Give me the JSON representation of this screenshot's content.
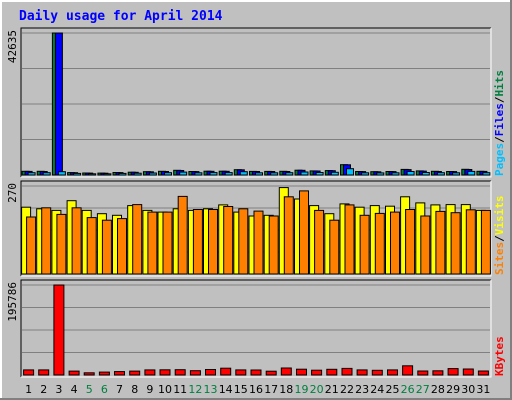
{
  "chart_data": {
    "type": "bar",
    "title": "Daily usage for April 2014",
    "days": [
      "1",
      "2",
      "3",
      "4",
      "5",
      "6",
      "7",
      "8",
      "9",
      "10",
      "11",
      "12",
      "13",
      "14",
      "15",
      "16",
      "17",
      "18",
      "19",
      "20",
      "21",
      "22",
      "23",
      "24",
      "25",
      "26",
      "27",
      "28",
      "29",
      "30",
      "31"
    ],
    "weekend_days": [
      "5",
      "6",
      "12",
      "13",
      "19",
      "20",
      "26",
      "27"
    ],
    "panels": [
      {
        "name": "hits-files-pages",
        "max_label": "42635",
        "ymax": 42635,
        "side_labels": [
          {
            "text": "Pages",
            "color": "#00c0ff"
          },
          {
            "text": "/",
            "color": "#000000"
          },
          {
            "text": "Files",
            "color": "#0000ff"
          },
          {
            "text": "/",
            "color": "#000000"
          },
          {
            "text": "Hits",
            "color": "#008040"
          }
        ],
        "series": [
          {
            "name": "Hits",
            "color": "#008040",
            "values": [
              1120,
              1100,
              42635,
              720,
              600,
              560,
              760,
              840,
              1000,
              1100,
              1400,
              1060,
              1150,
              1150,
              1600,
              1080,
              1090,
              1100,
              1450,
              1230,
              1320,
              3100,
              1050,
              1000,
              1050,
              1670,
              1220,
              1100,
              1060,
              1700,
              1120
            ]
          },
          {
            "name": "Files",
            "color": "#0000ff",
            "values": [
              1080,
              1060,
              42635,
              680,
              570,
              530,
              720,
              800,
              960,
              1060,
              1360,
              1020,
              1110,
              1110,
              1560,
              1040,
              1050,
              1060,
              1410,
              1190,
              1280,
              3050,
              1010,
              960,
              1010,
              1630,
              1180,
              1060,
              1020,
              1660,
              1080
            ]
          },
          {
            "name": "Pages",
            "color": "#00c0ff",
            "values": [
              700,
              690,
              1000,
              470,
              360,
              350,
              470,
              530,
              610,
              690,
              870,
              660,
              720,
              720,
              980,
              660,
              670,
              690,
              900,
              760,
              820,
              1900,
              650,
              620,
              650,
              1050,
              750,
              690,
              650,
              1080,
              690
            ]
          }
        ]
      },
      {
        "name": "visits-sites",
        "max_label": "270",
        "ymax": 270,
        "side_labels": [
          {
            "text": "Sites",
            "color": "#ff8000"
          },
          {
            "text": "/",
            "color": "#000000"
          },
          {
            "text": "Visits",
            "color": "#ffff00"
          }
        ],
        "series": [
          {
            "name": "Visits",
            "color": "#ffff00",
            "values": [
              205,
              200,
              195,
              225,
              195,
              185,
              180,
              210,
              195,
              190,
              200,
              195,
              200,
              212,
              190,
              178,
              180,
              265,
              230,
              210,
              185,
              215,
              205,
              210,
              208,
              237,
              218,
              212,
              213,
              213,
              195
            ]
          },
          {
            "name": "Sites",
            "color": "#ff8000",
            "values": [
              175,
              203,
              183,
              203,
              173,
              165,
              170,
              213,
              190,
              190,
              238,
              198,
              198,
              207,
              200,
              193,
              178,
              237,
              255,
              195,
              165,
              212,
              180,
              186,
              190,
              198,
              178,
              192,
              188,
              197,
              195
            ]
          }
        ]
      },
      {
        "name": "kbytes",
        "max_label": "195786",
        "ymax": 195786,
        "side_labels": [
          {
            "text": "KBytes",
            "color": "#ff0000"
          }
        ],
        "series": [
          {
            "name": "KBytes",
            "color": "#ff0000",
            "values": [
              11200,
              11000,
              195786,
              8500,
              4800,
              6200,
              7500,
              8400,
              11000,
              11400,
              11500,
              9300,
              11900,
              14700,
              11200,
              10800,
              8300,
              15300,
              12600,
              10500,
              12400,
              14300,
              11200,
              10200,
              11100,
              20000,
              8600,
              9200,
              14000,
              13000,
              8700
            ]
          }
        ]
      }
    ]
  }
}
